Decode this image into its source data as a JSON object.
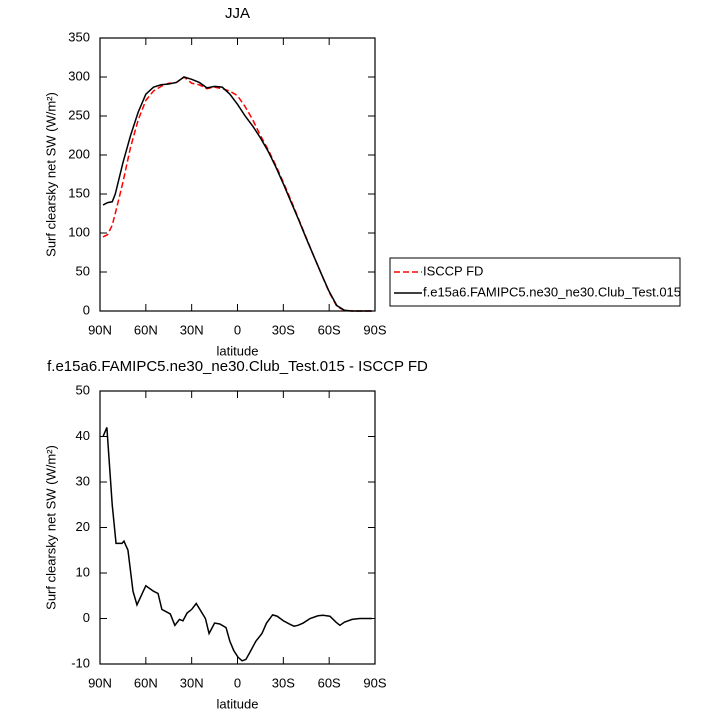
{
  "chart_data": [
    {
      "type": "line",
      "title": "JJA",
      "x_label": "latitude",
      "y_label": "Surf clearsky net SW (W/m²)",
      "x": [
        88,
        85,
        82,
        80,
        75,
        70,
        65,
        60,
        55,
        50,
        45,
        40,
        35,
        30,
        25,
        20,
        15,
        10,
        5,
        0,
        -5,
        -10,
        -15,
        -20,
        -25,
        -30,
        -35,
        -40,
        -45,
        -50,
        -55,
        -60,
        -65,
        -70,
        -75,
        -80,
        -85,
        -88
      ],
      "xlim": [
        90,
        -90
      ],
      "xticks": [
        {
          "value": 90,
          "label": "90N"
        },
        {
          "value": 60,
          "label": "60N"
        },
        {
          "value": 30,
          "label": "30N"
        },
        0,
        {
          "value": -30,
          "label": "30S"
        },
        {
          "value": -60,
          "label": "60S"
        },
        {
          "value": -90,
          "label": "90S"
        }
      ],
      "ylim": [
        0,
        350
      ],
      "yticks": [
        0,
        50,
        100,
        150,
        200,
        250,
        300,
        350
      ],
      "legend": "right",
      "series": [
        {
          "name": "ISCCP FD",
          "color": "#ff0000",
          "style": "dashed",
          "values": [
            95,
            98,
            110,
            125,
            165,
            210,
            245,
            270,
            282,
            288,
            292,
            293,
            300,
            292,
            290,
            285,
            287,
            285,
            282,
            276,
            262,
            245,
            225,
            207,
            187,
            165,
            142,
            118,
            94,
            70,
            47,
            24,
            6,
            0.5,
            0,
            0,
            0,
            0
          ]
        },
        {
          "name": "f.e15a6.FAMIPC5.ne30_ne30.Club_Test.015",
          "color": "#000000",
          "style": "solid",
          "values": [
            136,
            139,
            140,
            150,
            190,
            225,
            255,
            278,
            287,
            290,
            291,
            293,
            300,
            297,
            293,
            286,
            288,
            287,
            278,
            265,
            250,
            237,
            222,
            205,
            185,
            163,
            140,
            117,
            93,
            70,
            47,
            25,
            7,
            1,
            0,
            0,
            0,
            0
          ]
        }
      ]
    },
    {
      "type": "line",
      "title": "f.e15a6.FAMIPC5.ne30_ne30.Club_Test.015 - ISCCP FD",
      "x_label": "latitude",
      "y_label": "Surf clearsky net SW (W/m²)",
      "x": [
        88,
        85.5,
        82,
        79.5,
        75.6,
        74.3,
        71.7,
        68.4,
        65.8,
        60,
        55,
        52,
        49.5,
        44,
        41,
        38,
        35.7,
        33,
        30,
        27,
        21,
        18.6,
        15,
        11.6,
        7.5,
        5,
        2.5,
        -0.3,
        -3,
        -5.5,
        -8,
        -12,
        -16,
        -19,
        -23,
        -26,
        -30,
        -34.5,
        -37,
        -39.6,
        -43,
        -47.5,
        -52.7,
        -56,
        -60.5,
        -64.5,
        -67,
        -70,
        -75,
        -80,
        -88
      ],
      "xlim": [
        90,
        -90
      ],
      "xticks": [
        {
          "value": 90,
          "label": "90N"
        },
        {
          "value": 60,
          "label": "60N"
        },
        {
          "value": 30,
          "label": "30N"
        },
        0,
        {
          "value": -30,
          "label": "30S"
        },
        {
          "value": -60,
          "label": "60S"
        },
        {
          "value": -90,
          "label": "90S"
        }
      ],
      "ylim": [
        -10,
        50
      ],
      "yticks": [
        -10,
        0,
        10,
        20,
        30,
        40,
        50
      ],
      "series": [
        {
          "color": "#000000",
          "style": "solid",
          "values": [
            40,
            42,
            25,
            16.5,
            16.5,
            17,
            15,
            6,
            3,
            7.2,
            6,
            5.5,
            2,
            1,
            -1.5,
            -0.2,
            -0.5,
            1.2,
            2,
            3.3,
            0,
            -3.3,
            -1,
            -1.2,
            -2,
            -5,
            -7,
            -8.5,
            -9.3,
            -9,
            -7.5,
            -5,
            -3.3,
            -1,
            0.8,
            0.5,
            -0.5,
            -1.3,
            -1.7,
            -1.5,
            -1,
            0,
            0.6,
            0.7,
            0.5,
            -0.8,
            -1.5,
            -0.8,
            -0.2,
            0,
            0
          ]
        }
      ]
    }
  ]
}
